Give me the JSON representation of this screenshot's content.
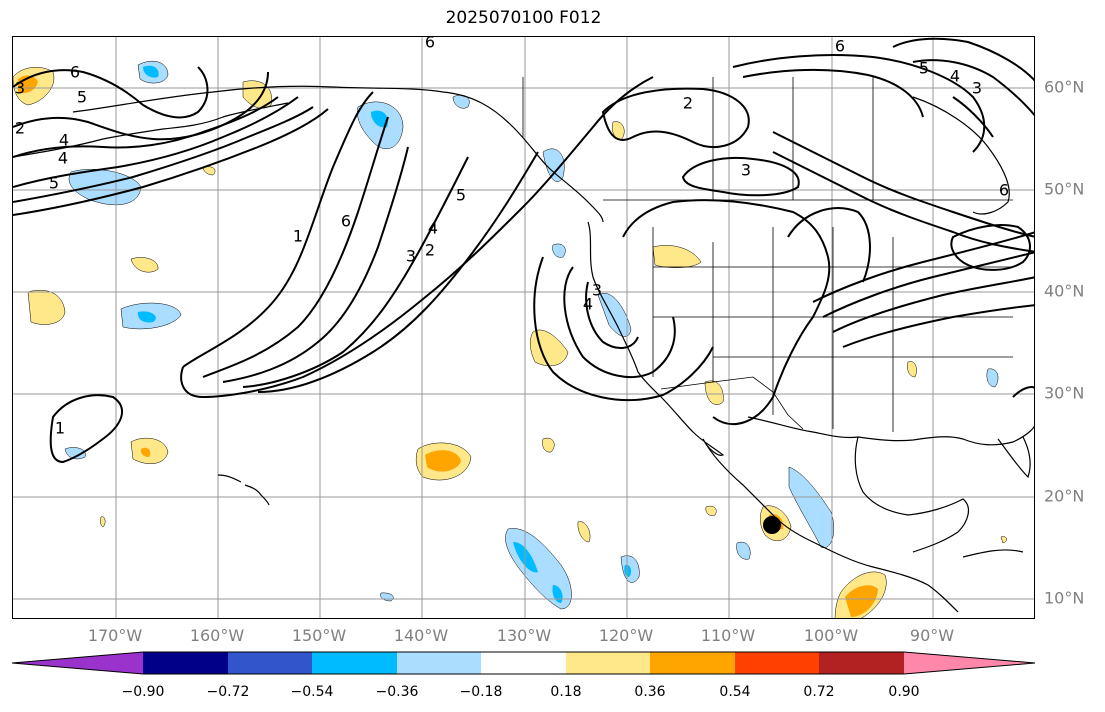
{
  "title": "2025070100 F012",
  "lon_labels": [
    "170°W",
    "160°W",
    "150°W",
    "140°W",
    "130°W",
    "120°W",
    "110°W",
    "100°W",
    "90°W"
  ],
  "lat_labels": [
    "60°N",
    "50°N",
    "40°N",
    "30°N",
    "20°N",
    "10°N"
  ],
  "colorbar": {
    "ticks": [
      "−0.90",
      "−0.72",
      "−0.54",
      "−0.36",
      "−0.18",
      "0.18",
      "0.36",
      "0.54",
      "0.72",
      "0.90"
    ],
    "colors": [
      "#9933cc",
      "#000088",
      "#3355cc",
      "#00bbff",
      "#aaddff",
      "#ffffff",
      "#ffe88a",
      "#ffa500",
      "#ff4000",
      "#b22222",
      "#ff88aa"
    ]
  },
  "contour_labels": [
    "6",
    "5",
    "6",
    "3",
    "4",
    "2",
    "4",
    "5",
    "1",
    "6",
    "5",
    "4",
    "3",
    "2",
    "3",
    "4",
    "2",
    "3",
    "6",
    "5",
    "4",
    "3",
    "6",
    "1"
  ],
  "colors": {
    "grid": "#999999",
    "contour": "#000000",
    "coast": "#000000",
    "marker": "#000000",
    "positive_light": "#ffe88a",
    "positive_mid": "#ffa500",
    "negative_light": "#aaddff",
    "negative_mid": "#00bbff"
  }
}
